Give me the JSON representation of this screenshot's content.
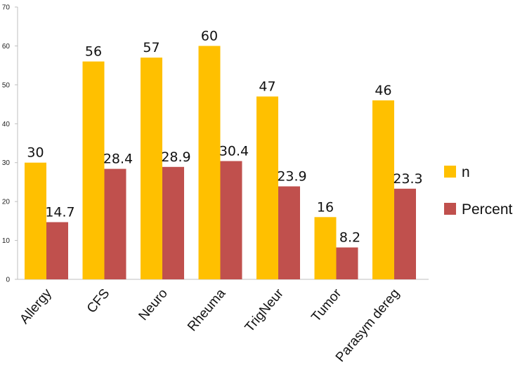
{
  "chart_data": {
    "type": "bar",
    "title": "",
    "xlabel": "",
    "ylabel": "",
    "categories": [
      "Allergy",
      "CFS",
      "Neuro",
      "Rheuma",
      "TrigNeur",
      "Tumor",
      "Parasym dereg"
    ],
    "series": [
      {
        "name": "n",
        "color": "#FFC000",
        "values": [
          30,
          56,
          57,
          60,
          47,
          16,
          46
        ],
        "labels": [
          "30",
          "56",
          "57",
          "60",
          "47",
          "16",
          "46"
        ]
      },
      {
        "name": "Percent",
        "color": "#C0504D",
        "values": [
          14.7,
          28.4,
          28.9,
          30.4,
          23.9,
          8.2,
          23.3
        ],
        "labels": [
          "14.7",
          "28.4",
          "28.9",
          "30.4",
          "23.9",
          "8.2",
          "23.3"
        ]
      }
    ],
    "ylim": [
      0,
      70
    ],
    "yticks": [
      0,
      10,
      20,
      30,
      40,
      50,
      60,
      70
    ],
    "grid": false,
    "legend_position": "right"
  }
}
